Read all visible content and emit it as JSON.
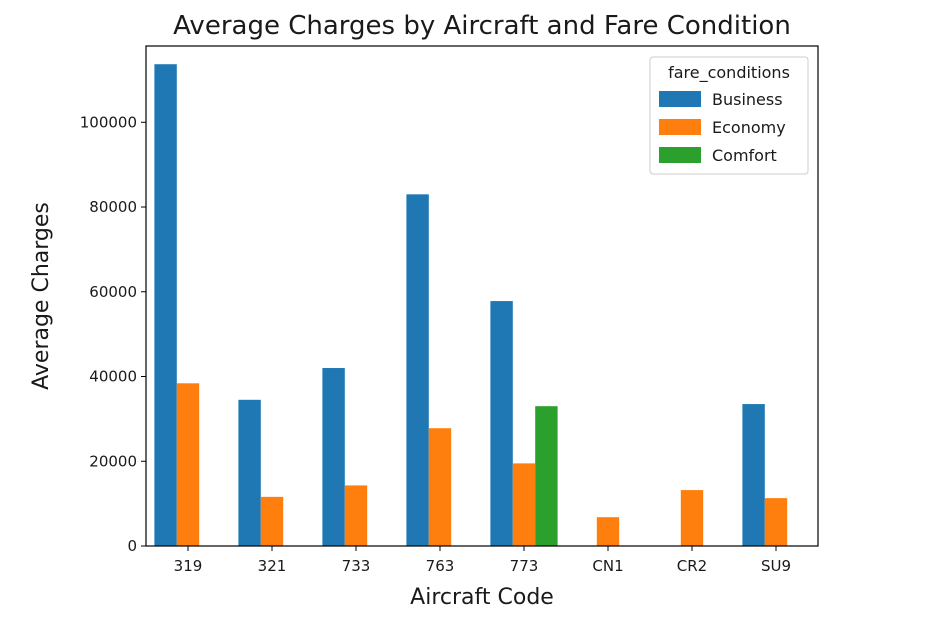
{
  "chart_data": {
    "type": "bar",
    "title": "Average Charges by Aircraft and Fare Condition",
    "xlabel": "Aircraft Code",
    "ylabel": "Average Charges",
    "categories": [
      "319",
      "321",
      "733",
      "763",
      "773",
      "CN1",
      "CR2",
      "SU9"
    ],
    "series": [
      {
        "name": "Business",
        "color": "#1f77b4",
        "values": [
          113700,
          34500,
          42000,
          83000,
          57800,
          null,
          null,
          33500
        ]
      },
      {
        "name": "Economy",
        "color": "#ff7f0e",
        "values": [
          38400,
          11600,
          14300,
          27800,
          19500,
          6800,
          13200,
          11300
        ]
      },
      {
        "name": "Comfort",
        "color": "#2ca02c",
        "values": [
          null,
          null,
          null,
          null,
          33000,
          null,
          null,
          null
        ]
      }
    ],
    "ylim": [
      0,
      118000
    ],
    "yticks": [
      0,
      20000,
      40000,
      60000,
      80000,
      100000
    ],
    "grid": false,
    "legend": {
      "title": "fare_conditions",
      "position": "top-right"
    }
  }
}
